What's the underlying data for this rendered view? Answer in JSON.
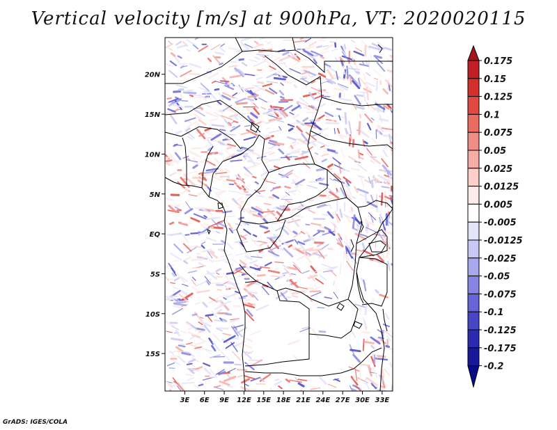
{
  "chart_data": {
    "type": "heatmap",
    "title": "Vertical velocity [m/s] at 900hPa, VT: 2020020115",
    "variable": "Vertical velocity",
    "units": "m/s",
    "level": "900hPa",
    "valid_time": "2020020115",
    "x_ticks": [
      {
        "value": 3,
        "label": "3E"
      },
      {
        "value": 6,
        "label": "6E"
      },
      {
        "value": 9,
        "label": "9E"
      },
      {
        "value": 12,
        "label": "12E"
      },
      {
        "value": 15,
        "label": "15E"
      },
      {
        "value": 18,
        "label": "18E"
      },
      {
        "value": 21,
        "label": "21E"
      },
      {
        "value": 24,
        "label": "24E"
      },
      {
        "value": 27,
        "label": "27E"
      },
      {
        "value": 30,
        "label": "30E"
      },
      {
        "value": 33,
        "label": "33E"
      }
    ],
    "y_ticks": [
      {
        "value": 20,
        "label": "20N"
      },
      {
        "value": 15,
        "label": "15N"
      },
      {
        "value": 10,
        "label": "10N"
      },
      {
        "value": 5,
        "label": "5N"
      },
      {
        "value": 0,
        "label": "EQ"
      },
      {
        "value": -5,
        "label": "5S"
      },
      {
        "value": -10,
        "label": "10S"
      },
      {
        "value": -15,
        "label": "15S"
      }
    ],
    "xlim": [
      0,
      34.6
    ],
    "ylim": [
      -19.7,
      24.6
    ],
    "colorbar": {
      "levels": [
        "0.175",
        "0.15",
        "0.125",
        "0.1",
        "0.075",
        "0.05",
        "0.025",
        "0.0125",
        "0.005",
        "-0.005",
        "-0.0125",
        "-0.025",
        "-0.05",
        "-0.075",
        "-0.1",
        "-0.125",
        "-0.175",
        "-0.2"
      ],
      "colors": [
        "#a8141c",
        "#bf2026",
        "#d3302d",
        "#e04a43",
        "#ec6b63",
        "#f28d86",
        "#f8aca6",
        "#fccfcb",
        "#fdebe9",
        "#ffffff",
        "#e4e4fb",
        "#c8c8f4",
        "#a8a8ec",
        "#8686e2",
        "#6565d8",
        "#4646c6",
        "#2a2ab2",
        "#18189c",
        "#0b0b88"
      ]
    }
  },
  "credit": "GrADS: IGES/COLA"
}
